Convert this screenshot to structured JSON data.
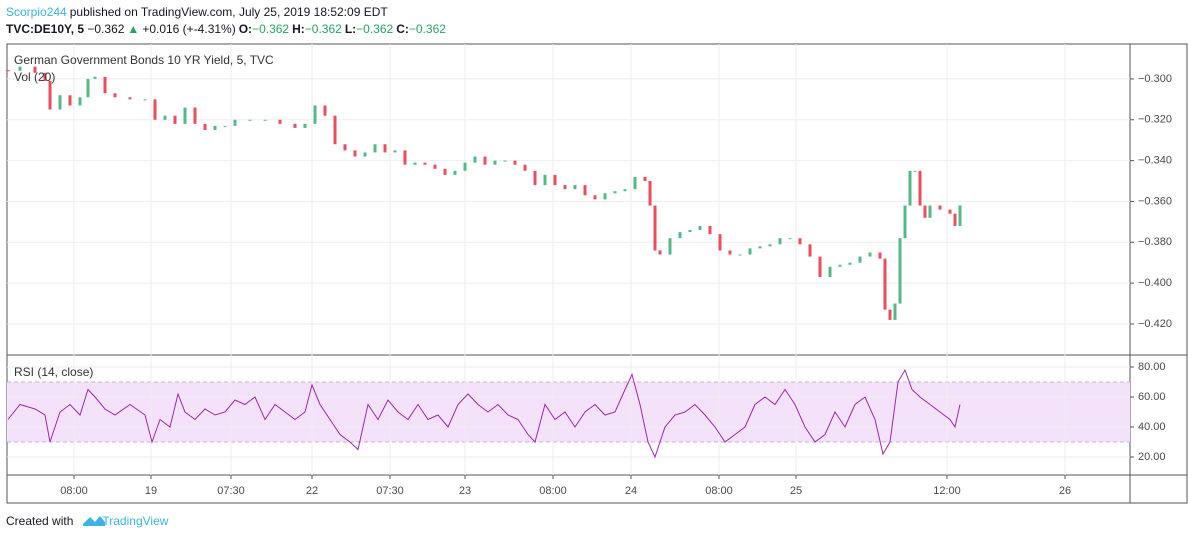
{
  "header": {
    "author": "Scorpio244",
    "published": "published on TradingView.com, July 25, 2019 18:52:09 EDT",
    "symbol": "TVC:DE10Y, 5",
    "last": "−0.362",
    "arrow": "▲",
    "change": "+0.016 (+-4.31%)",
    "o_label": "O:",
    "o": "−0.362",
    "h_label": "H:",
    "h": "−0.362",
    "l_label": "L:",
    "l": "−0.362",
    "c_label": "C:",
    "c": "−0.362"
  },
  "chart_data": [
    {
      "type": "candlestick",
      "title": "German Government Bonds 10 YR Yield, 5, TVC",
      "subtitle": "Vol (20)",
      "up_color": "#53b987",
      "down_color": "#eb4d5c",
      "grid": true,
      "xlim": [
        0,
        1123
      ],
      "ylim": [
        -0.4352,
        -0.2829
      ],
      "yticks": [
        {
          "value": -0.3,
          "label": "−0.300"
        },
        {
          "value": -0.32,
          "label": "−0.320"
        },
        {
          "value": -0.34,
          "label": "−0.340"
        },
        {
          "value": -0.36,
          "label": "−0.360"
        },
        {
          "value": -0.38,
          "label": "−0.380"
        },
        {
          "value": -0.4,
          "label": "−0.400"
        },
        {
          "value": -0.42,
          "label": "−0.420"
        }
      ],
      "x": [
        1,
        13,
        28,
        38,
        43,
        53,
        63,
        73,
        81,
        88,
        98,
        108,
        123,
        138,
        148,
        158,
        168,
        178,
        188,
        198,
        208,
        218,
        228,
        243,
        258,
        273,
        288,
        298,
        308,
        318,
        328,
        338,
        348,
        358,
        368,
        378,
        388,
        398,
        408,
        418,
        428,
        438,
        448,
        458,
        468,
        478,
        488,
        498,
        508,
        518,
        528,
        538,
        548,
        558,
        568,
        578,
        588,
        598,
        608,
        618,
        628,
        638,
        643,
        648,
        653,
        663,
        673,
        683,
        693,
        703,
        713,
        723,
        733,
        743,
        753,
        763,
        773,
        783,
        793,
        803,
        813,
        823,
        833,
        843,
        853,
        863,
        873,
        878,
        883,
        888,
        893,
        898,
        903,
        908,
        913,
        918,
        923,
        933,
        943,
        948,
        953
      ],
      "closes": [
        -0.296,
        -0.294,
        -0.297,
        -0.301,
        -0.315,
        -0.308,
        -0.313,
        -0.309,
        -0.3,
        -0.299,
        -0.307,
        -0.309,
        -0.31,
        -0.31,
        -0.32,
        -0.318,
        -0.322,
        -0.314,
        -0.322,
        -0.325,
        -0.323,
        -0.323,
        -0.32,
        -0.32,
        -0.32,
        -0.322,
        -0.324,
        -0.322,
        -0.313,
        -0.318,
        -0.332,
        -0.335,
        -0.338,
        -0.336,
        -0.332,
        -0.336,
        -0.335,
        -0.342,
        -0.341,
        -0.342,
        -0.344,
        -0.347,
        -0.345,
        -0.341,
        -0.338,
        -0.342,
        -0.34,
        -0.34,
        -0.342,
        -0.345,
        -0.352,
        -0.347,
        -0.352,
        -0.354,
        -0.352,
        -0.357,
        -0.359,
        -0.356,
        -0.355,
        -0.354,
        -0.348,
        -0.35,
        -0.362,
        -0.384,
        -0.386,
        -0.378,
        -0.375,
        -0.374,
        -0.372,
        -0.376,
        -0.384,
        -0.386,
        -0.386,
        -0.383,
        -0.382,
        -0.381,
        -0.378,
        -0.378,
        -0.381,
        -0.387,
        -0.397,
        -0.392,
        -0.391,
        -0.39,
        -0.387,
        -0.385,
        -0.388,
        -0.413,
        -0.418,
        -0.41,
        -0.378,
        -0.362,
        -0.345,
        -0.345,
        -0.362,
        -0.368,
        -0.362,
        -0.364,
        -0.366,
        -0.372,
        -0.362
      ]
    },
    {
      "type": "line",
      "title": "RSI (14, close)",
      "color": "#9c27b0",
      "band": [
        30,
        70
      ],
      "band_color": "#f3e2fa",
      "grid": true,
      "xlim": [
        0,
        1123
      ],
      "ylim": [
        8,
        88
      ],
      "yticks": [
        {
          "value": 20,
          "label": "20.00"
        },
        {
          "value": 40,
          "label": "40.00"
        },
        {
          "value": 60,
          "label": "60.00"
        },
        {
          "value": 80,
          "label": "80.00"
        }
      ],
      "xticks": [
        {
          "value": 67,
          "label": "08:00"
        },
        {
          "value": 144,
          "label": "19"
        },
        {
          "value": 224,
          "label": "07:30"
        },
        {
          "value": 305,
          "label": "22"
        },
        {
          "value": 383,
          "label": "07:30"
        },
        {
          "value": 458,
          "label": "23"
        },
        {
          "value": 546,
          "label": "08:00"
        },
        {
          "value": 624,
          "label": "24"
        },
        {
          "value": 712,
          "label": "08:00"
        },
        {
          "value": 789,
          "label": "25"
        },
        {
          "value": 940,
          "label": "12:00"
        },
        {
          "value": 1058,
          "label": "26"
        }
      ],
      "x": [
        1,
        13,
        28,
        38,
        43,
        53,
        63,
        73,
        81,
        88,
        98,
        108,
        123,
        138,
        145,
        153,
        163,
        171,
        178,
        188,
        198,
        208,
        218,
        228,
        238,
        248,
        258,
        268,
        278,
        288,
        298,
        305,
        313,
        323,
        333,
        343,
        351,
        361,
        371,
        381,
        391,
        401,
        411,
        421,
        431,
        441,
        451,
        461,
        471,
        481,
        491,
        501,
        511,
        521,
        528,
        538,
        548,
        558,
        568,
        578,
        588,
        598,
        608,
        618,
        625,
        633,
        641,
        648,
        658,
        668,
        678,
        688,
        698,
        708,
        718,
        728,
        738,
        748,
        758,
        768,
        778,
        788,
        798,
        808,
        818,
        828,
        838,
        848,
        858,
        868,
        876,
        883,
        891,
        898,
        905,
        913,
        923,
        933,
        943,
        948,
        953
      ],
      "values": [
        45,
        55,
        52,
        48,
        30,
        50,
        55,
        48,
        65,
        60,
        52,
        48,
        55,
        48,
        30,
        45,
        40,
        62,
        50,
        45,
        52,
        48,
        50,
        58,
        55,
        60,
        45,
        55,
        50,
        45,
        50,
        68,
        55,
        45,
        35,
        30,
        25,
        55,
        45,
        58,
        50,
        45,
        55,
        45,
        48,
        40,
        55,
        62,
        55,
        50,
        55,
        48,
        45,
        35,
        30,
        55,
        45,
        50,
        40,
        50,
        55,
        48,
        50,
        65,
        75,
        55,
        30,
        20,
        40,
        48,
        50,
        55,
        48,
        40,
        30,
        35,
        40,
        55,
        60,
        55,
        65,
        55,
        40,
        30,
        35,
        50,
        40,
        55,
        60,
        45,
        22,
        30,
        70,
        78,
        65,
        60,
        55,
        50,
        45,
        40,
        55
      ]
    }
  ],
  "footer": {
    "created": "Created with",
    "brand": "TradingView"
  }
}
